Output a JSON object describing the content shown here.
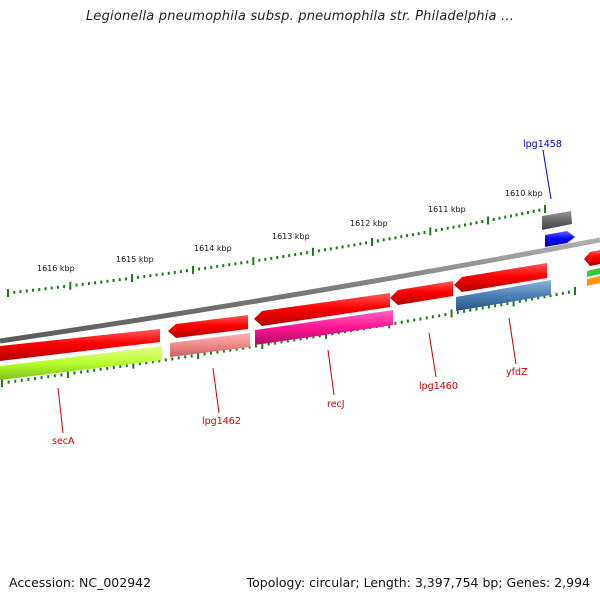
{
  "title": "Legionella pneumophila subsp. pneumophila str. Philadelphia ...",
  "footer": {
    "accession": "Accession: NC_002942",
    "topology": "Topology: circular; Length: 3,397,754 bp; Genes: 2,994"
  },
  "colors": {
    "backbone": "#808080",
    "tick": "#1a7a1a",
    "kbp_label": "#111111",
    "gene_label": "#cc0000",
    "highlight_label": "#0000cc"
  },
  "kbp_labels": [
    "1616 kbp",
    "1615 kbp",
    "1614 kbp",
    "1613 kbp",
    "1612 kbp",
    "1611 kbp",
    "1610 kbp"
  ],
  "genes": [
    {
      "name": "secA",
      "label_color": "#cc0000"
    },
    {
      "name": "lpg1462",
      "label_color": "#cc0000"
    },
    {
      "name": "recJ",
      "label_color": "#cc0000"
    },
    {
      "name": "lpg1460",
      "label_color": "#cc0000"
    },
    {
      "name": "yfdZ",
      "label_color": "#cc0000"
    },
    {
      "name": "lpg1458",
      "label_color": "#0000cc"
    }
  ]
}
